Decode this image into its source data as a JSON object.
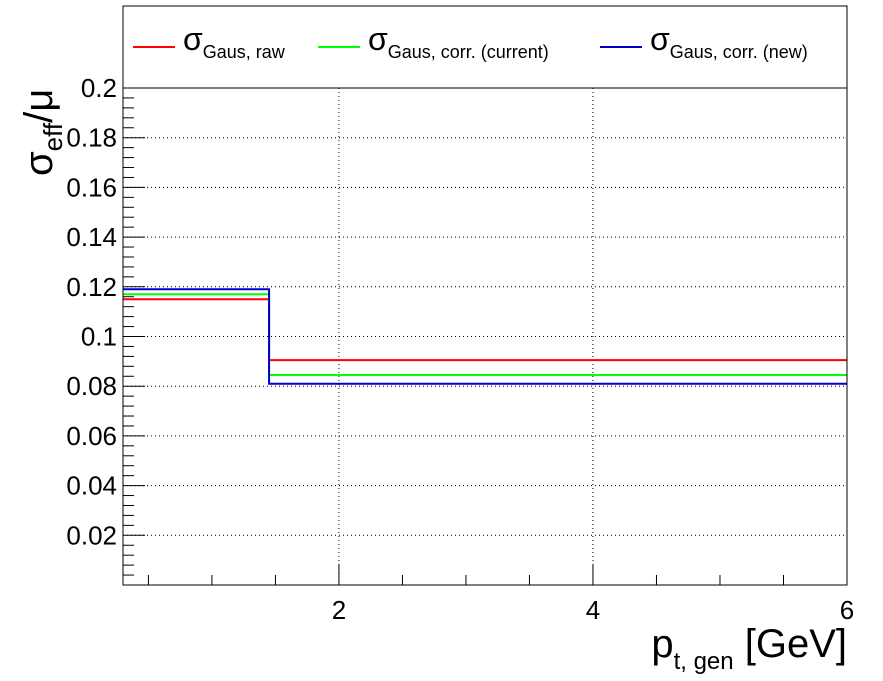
{
  "chart_data": {
    "type": "line",
    "step": true,
    "grid": true,
    "legend_placement": "top",
    "x_bin_edges": [
      0.3,
      1.45,
      6.0
    ],
    "xlim": [
      0.3,
      6.0
    ],
    "ylim": [
      0.0,
      0.2
    ],
    "x_ticks": [
      2,
      4,
      6
    ],
    "x_tick_labels": [
      "2",
      "4",
      "6"
    ],
    "y_ticks": [
      0.02,
      0.04,
      0.06,
      0.08,
      0.1,
      0.12,
      0.14,
      0.16,
      0.18,
      0.2
    ],
    "y_tick_labels": [
      "0.02",
      "0.04",
      "0.06",
      "0.08",
      "0.1",
      "0.12",
      "0.14",
      "0.16",
      "0.18",
      "0.2"
    ],
    "xlabel": {
      "main": "p",
      "sub": "t, gen",
      "tail": " [GeV]"
    },
    "ylabel": {
      "main": "σ",
      "sub": "eff",
      "tail": "/μ"
    },
    "series": [
      {
        "legend_main": "σ",
        "legend_sub": "Gaus, raw",
        "color": "#ff0000",
        "values": [
          0.115,
          0.0905
        ]
      },
      {
        "legend_main": "σ",
        "legend_sub": "Gaus, corr. (current)",
        "color": "#00ff00",
        "values": [
          0.117,
          0.0845
        ]
      },
      {
        "legend_main": "σ",
        "legend_sub": "Gaus, corr. (new)",
        "color": "#0000cc",
        "values": [
          0.119,
          0.081
        ]
      }
    ]
  }
}
